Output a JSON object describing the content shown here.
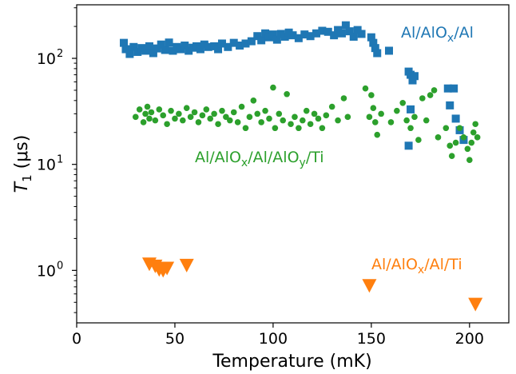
{
  "chart_data": {
    "type": "scatter",
    "xlabel": "Temperature (mK)",
    "ylabel": {
      "main": "T",
      "sub": "1",
      "units": " (μs)"
    },
    "xlim": [
      0,
      220
    ],
    "ylim": [
      0.32,
      320
    ],
    "yscale": "log",
    "grid": false,
    "x_ticks": [
      0,
      50,
      100,
      150,
      200
    ],
    "y_ticks": [
      {
        "value": 1,
        "base": "10",
        "exp": "0"
      },
      {
        "value": 10,
        "base": "10",
        "exp": "1"
      },
      {
        "value": 100,
        "base": "10",
        "exp": "2"
      }
    ],
    "series": [
      {
        "name": {
          "pre": "Al/AlO",
          "sub": "x",
          "post": "/Al"
        },
        "color": "#1f77b4",
        "marker": "square",
        "points": [
          {
            "x": 24,
            "y": 140
          },
          {
            "x": 25,
            "y": 122
          },
          {
            "x": 27,
            "y": 110
          },
          {
            "x": 29,
            "y": 128
          },
          {
            "x": 31,
            "y": 115
          },
          {
            "x": 33,
            "y": 125
          },
          {
            "x": 35,
            "y": 118
          },
          {
            "x": 37,
            "y": 130
          },
          {
            "x": 39,
            "y": 112
          },
          {
            "x": 41,
            "y": 124
          },
          {
            "x": 43,
            "y": 135
          },
          {
            "x": 45,
            "y": 120
          },
          {
            "x": 47,
            "y": 141
          },
          {
            "x": 49,
            "y": 118
          },
          {
            "x": 51,
            "y": 128
          },
          {
            "x": 53,
            "y": 122
          },
          {
            "x": 55,
            "y": 132
          },
          {
            "x": 57,
            "y": 118
          },
          {
            "x": 59,
            "y": 126
          },
          {
            "x": 61,
            "y": 130
          },
          {
            "x": 63,
            "y": 122
          },
          {
            "x": 65,
            "y": 135
          },
          {
            "x": 67,
            "y": 128
          },
          {
            "x": 70,
            "y": 130
          },
          {
            "x": 72,
            "y": 122
          },
          {
            "x": 74,
            "y": 138
          },
          {
            "x": 77,
            "y": 128
          },
          {
            "x": 80,
            "y": 140
          },
          {
            "x": 83,
            "y": 132
          },
          {
            "x": 86,
            "y": 138
          },
          {
            "x": 89,
            "y": 145
          },
          {
            "x": 92,
            "y": 162
          },
          {
            "x": 94,
            "y": 148
          },
          {
            "x": 96,
            "y": 172
          },
          {
            "x": 98,
            "y": 158
          },
          {
            "x": 100,
            "y": 168
          },
          {
            "x": 102,
            "y": 150
          },
          {
            "x": 104,
            "y": 170
          },
          {
            "x": 106,
            "y": 160
          },
          {
            "x": 108,
            "y": 175
          },
          {
            "x": 110,
            "y": 165
          },
          {
            "x": 113,
            "y": 155
          },
          {
            "x": 116,
            "y": 168
          },
          {
            "x": 119,
            "y": 162
          },
          {
            "x": 122,
            "y": 172
          },
          {
            "x": 125,
            "y": 182
          },
          {
            "x": 128,
            "y": 178
          },
          {
            "x": 131,
            "y": 165
          },
          {
            "x": 133,
            "y": 185
          },
          {
            "x": 135,
            "y": 172
          },
          {
            "x": 137,
            "y": 205
          },
          {
            "x": 139,
            "y": 180
          },
          {
            "x": 141,
            "y": 160
          },
          {
            "x": 143,
            "y": 185
          },
          {
            "x": 145,
            "y": 170
          },
          {
            "x": 150,
            "y": 158
          },
          {
            "x": 151,
            "y": 140
          },
          {
            "x": 152,
            "y": 125
          },
          {
            "x": 153,
            "y": 112
          },
          {
            "x": 159,
            "y": 118
          },
          {
            "x": 169,
            "y": 75
          },
          {
            "x": 170,
            "y": 70
          },
          {
            "x": 171,
            "y": 62
          },
          {
            "x": 172,
            "y": 68
          },
          {
            "x": 169,
            "y": 15
          },
          {
            "x": 170,
            "y": 33
          },
          {
            "x": 189,
            "y": 52
          },
          {
            "x": 190,
            "y": 36
          },
          {
            "x": 192,
            "y": 52
          },
          {
            "x": 193,
            "y": 27
          },
          {
            "x": 195,
            "y": 21
          },
          {
            "x": 197,
            "y": 17
          }
        ]
      },
      {
        "name": {
          "pre": "Al/AlO",
          "sub": "x",
          "post": "/Al/AlO",
          "sub2": "y",
          "post2": "/Ti"
        },
        "color": "#2ca02c",
        "marker": "circle",
        "points": [
          {
            "x": 30,
            "y": 28
          },
          {
            "x": 32,
            "y": 33
          },
          {
            "x": 34,
            "y": 25
          },
          {
            "x": 35,
            "y": 30
          },
          {
            "x": 36,
            "y": 35
          },
          {
            "x": 37,
            "y": 27
          },
          {
            "x": 38,
            "y": 31
          },
          {
            "x": 40,
            "y": 26
          },
          {
            "x": 42,
            "y": 33
          },
          {
            "x": 44,
            "y": 29
          },
          {
            "x": 46,
            "y": 24
          },
          {
            "x": 48,
            "y": 32
          },
          {
            "x": 50,
            "y": 27
          },
          {
            "x": 52,
            "y": 30
          },
          {
            "x": 54,
            "y": 26
          },
          {
            "x": 56,
            "y": 34
          },
          {
            "x": 58,
            "y": 28
          },
          {
            "x": 60,
            "y": 31
          },
          {
            "x": 62,
            "y": 25
          },
          {
            "x": 64,
            "y": 29
          },
          {
            "x": 66,
            "y": 33
          },
          {
            "x": 68,
            "y": 27
          },
          {
            "x": 70,
            "y": 30
          },
          {
            "x": 72,
            "y": 24
          },
          {
            "x": 74,
            "y": 32
          },
          {
            "x": 76,
            "y": 28
          },
          {
            "x": 78,
            "y": 26
          },
          {
            "x": 80,
            "y": 31
          },
          {
            "x": 82,
            "y": 25
          },
          {
            "x": 84,
            "y": 35
          },
          {
            "x": 86,
            "y": 22
          },
          {
            "x": 88,
            "y": 28
          },
          {
            "x": 90,
            "y": 40
          },
          {
            "x": 92,
            "y": 30
          },
          {
            "x": 94,
            "y": 25
          },
          {
            "x": 96,
            "y": 32
          },
          {
            "x": 98,
            "y": 27
          },
          {
            "x": 100,
            "y": 53
          },
          {
            "x": 101,
            "y": 22
          },
          {
            "x": 103,
            "y": 30
          },
          {
            "x": 105,
            "y": 26
          },
          {
            "x": 107,
            "y": 46
          },
          {
            "x": 109,
            "y": 24
          },
          {
            "x": 111,
            "y": 28
          },
          {
            "x": 113,
            "y": 22
          },
          {
            "x": 115,
            "y": 26
          },
          {
            "x": 117,
            "y": 32
          },
          {
            "x": 119,
            "y": 24
          },
          {
            "x": 121,
            "y": 30
          },
          {
            "x": 123,
            "y": 27
          },
          {
            "x": 125,
            "y": 22
          },
          {
            "x": 127,
            "y": 29
          },
          {
            "x": 130,
            "y": 35
          },
          {
            "x": 133,
            "y": 26
          },
          {
            "x": 136,
            "y": 42
          },
          {
            "x": 138,
            "y": 28
          },
          {
            "x": 147,
            "y": 52
          },
          {
            "x": 149,
            "y": 28
          },
          {
            "x": 150,
            "y": 45
          },
          {
            "x": 151,
            "y": 34
          },
          {
            "x": 152,
            "y": 25
          },
          {
            "x": 153,
            "y": 19
          },
          {
            "x": 155,
            "y": 30
          },
          {
            "x": 160,
            "y": 25
          },
          {
            "x": 163,
            "y": 32
          },
          {
            "x": 166,
            "y": 38
          },
          {
            "x": 168,
            "y": 26
          },
          {
            "x": 170,
            "y": 22
          },
          {
            "x": 172,
            "y": 28
          },
          {
            "x": 174,
            "y": 17
          },
          {
            "x": 176,
            "y": 42
          },
          {
            "x": 178,
            "y": 26
          },
          {
            "x": 180,
            "y": 45
          },
          {
            "x": 182,
            "y": 50
          },
          {
            "x": 184,
            "y": 18
          },
          {
            "x": 188,
            "y": 22
          },
          {
            "x": 190,
            "y": 15
          },
          {
            "x": 191,
            "y": 12
          },
          {
            "x": 193,
            "y": 16
          },
          {
            "x": 195,
            "y": 22
          },
          {
            "x": 197,
            "y": 18
          },
          {
            "x": 199,
            "y": 14
          },
          {
            "x": 200,
            "y": 11
          },
          {
            "x": 201,
            "y": 16
          },
          {
            "x": 202,
            "y": 20
          },
          {
            "x": 203,
            "y": 24
          },
          {
            "x": 204,
            "y": 18
          }
        ]
      },
      {
        "name": {
          "pre": "Al/AlO",
          "sub": "x",
          "post": "/Al/Ti"
        },
        "color": "#ff7f0e",
        "marker": "triangle-down",
        "points": [
          {
            "x": 37,
            "y": 1.15
          },
          {
            "x": 40,
            "y": 1.1
          },
          {
            "x": 42,
            "y": 1.02
          },
          {
            "x": 44,
            "y": 1.0
          },
          {
            "x": 46,
            "y": 1.05
          },
          {
            "x": 56,
            "y": 1.12
          },
          {
            "x": 149,
            "y": 0.72
          },
          {
            "x": 203,
            "y": 0.48
          }
        ]
      }
    ]
  }
}
